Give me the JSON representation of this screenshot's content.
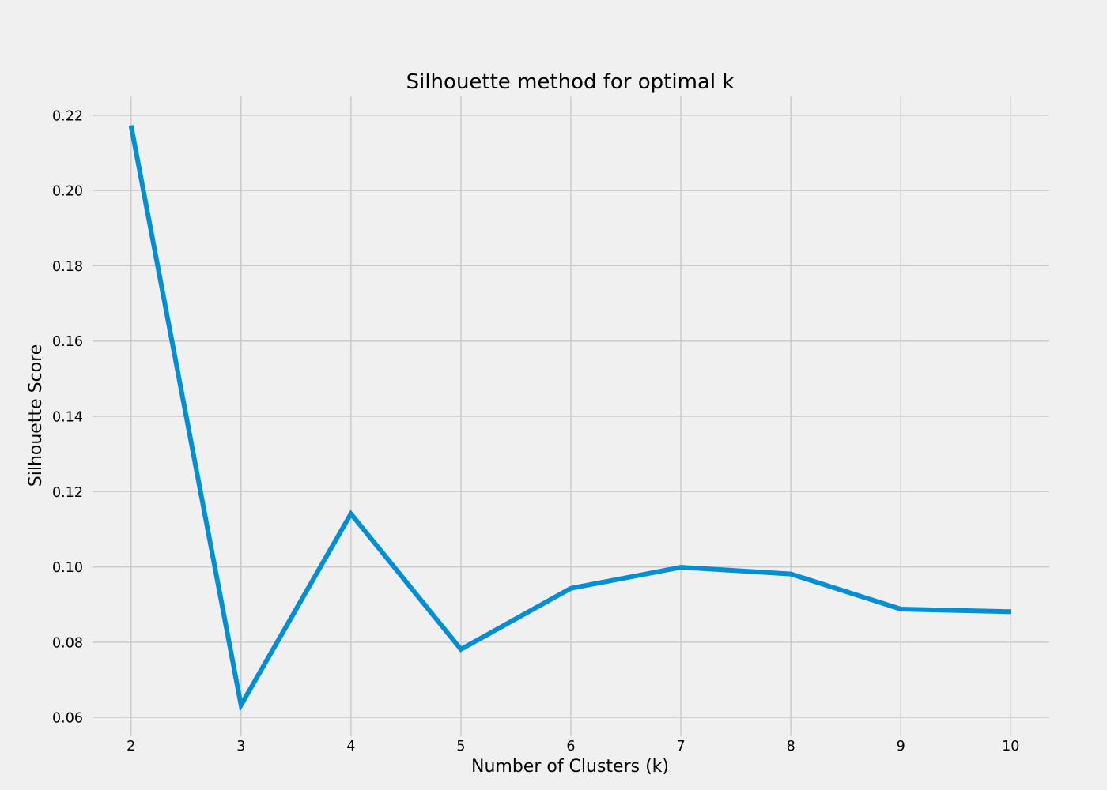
{
  "chart_data": {
    "type": "line",
    "title": "Silhouette method for optimal k",
    "xlabel": "Number of Clusters (k)",
    "ylabel": "Silhouette Score",
    "x": [
      2,
      3,
      4,
      5,
      6,
      7,
      8,
      9,
      10
    ],
    "xlim": [
      1.65,
      10.35
    ],
    "ylim": [
      0.055,
      0.225
    ],
    "xticks": [
      2,
      3,
      4,
      5,
      6,
      7,
      8,
      9,
      10
    ],
    "yticks": [
      0.06,
      0.08,
      0.1,
      0.12,
      0.14,
      0.16,
      0.18,
      0.2,
      0.22
    ],
    "ytick_labels": [
      "0.06",
      "0.08",
      "0.10",
      "0.12",
      "0.14",
      "0.16",
      "0.18",
      "0.20",
      "0.22"
    ],
    "series": [
      {
        "values": [
          0.2173,
          0.0633,
          0.1141,
          0.0781,
          0.0943,
          0.0999,
          0.0981,
          0.0888,
          0.0881
        ],
        "color": "#008fd5"
      }
    ],
    "grid": true,
    "legend": "none",
    "background": "#f0f0f0",
    "grid_color": "#cbcbcb"
  }
}
